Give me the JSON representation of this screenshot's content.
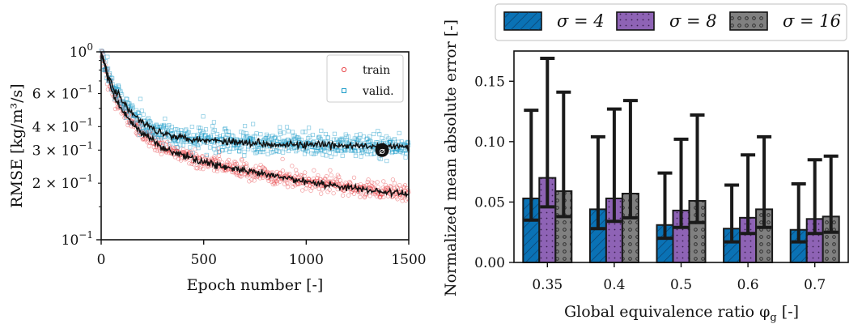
{
  "figure": {
    "left_panel": {
      "xlabel": "Epoch number [-]",
      "ylabel": "RMSE [kg/m³/s]",
      "x_ticks": [
        "0",
        "500",
        "1000",
        "1500"
      ],
      "y_ticks": [
        {
          "mant": "10",
          "exp": "0",
          "value": 1.0
        },
        {
          "mant": "6 × 10",
          "exp": "−1",
          "value": 0.6
        },
        {
          "mant": "4 × 10",
          "exp": "−1",
          "value": 0.4
        },
        {
          "mant": "3 × 10",
          "exp": "−1",
          "value": 0.3
        },
        {
          "mant": "2 × 10",
          "exp": "−1",
          "value": 0.2
        },
        {
          "mant": "10",
          "exp": "−1",
          "value": 0.1
        }
      ],
      "legend": [
        "train",
        "valid."
      ],
      "marker_label": "⌀"
    },
    "right_panel": {
      "xlabel": "Global equivalence ratio φ",
      "xlabel_sub": "g",
      "xlabel_suffix": " [-]",
      "ylabel": "Normalized mean absolute error [-]",
      "y_ticks": [
        "0.00",
        "0.05",
        "0.10",
        "0.15"
      ],
      "legend": [
        {
          "label": "σ = 4"
        },
        {
          "label": "σ = 8"
        },
        {
          "label": "σ = 16"
        }
      ]
    }
  },
  "chart_data": [
    {
      "type": "scatter",
      "xlabel": "Epoch number [-]",
      "ylabel": "RMSE [kg/m³/s]",
      "xlim": [
        0,
        1500
      ],
      "ylim": [
        0.1,
        1.0
      ],
      "yscale": "log",
      "legend_position": "top-right",
      "series": [
        {
          "name": "train",
          "color": "#e8474b",
          "trend": [
            [
              0,
              1.0
            ],
            [
              25,
              0.78
            ],
            [
              50,
              0.62
            ],
            [
              100,
              0.49
            ],
            [
              150,
              0.42
            ],
            [
              200,
              0.37
            ],
            [
              300,
              0.31
            ],
            [
              400,
              0.28
            ],
            [
              500,
              0.26
            ],
            [
              600,
              0.245
            ],
            [
              700,
              0.232
            ],
            [
              800,
              0.222
            ],
            [
              900,
              0.213
            ],
            [
              1000,
              0.205
            ],
            [
              1100,
              0.197
            ],
            [
              1200,
              0.19
            ],
            [
              1300,
              0.184
            ],
            [
              1400,
              0.179
            ],
            [
              1500,
              0.175
            ]
          ]
        },
        {
          "name": "valid.",
          "color": "#1a9bc8",
          "trend": [
            [
              0,
              1.0
            ],
            [
              25,
              0.82
            ],
            [
              50,
              0.68
            ],
            [
              100,
              0.55
            ],
            [
              150,
              0.47
            ],
            [
              200,
              0.42
            ],
            [
              300,
              0.37
            ],
            [
              400,
              0.35
            ],
            [
              500,
              0.34
            ],
            [
              600,
              0.335
            ],
            [
              700,
              0.33
            ],
            [
              800,
              0.325
            ],
            [
              900,
              0.322
            ],
            [
              1000,
              0.32
            ],
            [
              1100,
              0.318
            ],
            [
              1200,
              0.316
            ],
            [
              1300,
              0.314
            ],
            [
              1400,
              0.313
            ],
            [
              1500,
              0.312
            ]
          ]
        }
      ],
      "selected_epoch": 1370,
      "selected_value": 0.3
    },
    {
      "type": "bar",
      "xlabel": "Global equivalence ratio φ_g [-]",
      "ylabel": "Normalized mean absolute error [-]",
      "categories": [
        "0.35",
        "0.4",
        "0.5",
        "0.6",
        "0.7"
      ],
      "ylim": [
        0,
        0.175
      ],
      "legend_position": "top (outside)",
      "series": [
        {
          "name": "σ = 4",
          "color": "#0a72b5",
          "hatch": "diagonal",
          "values": [
            0.053,
            0.044,
            0.031,
            0.028,
            0.027
          ],
          "error_upper": [
            0.126,
            0.104,
            0.074,
            0.064,
            0.065
          ],
          "error_lower": [
            0.035,
            0.028,
            0.02,
            0.017,
            0.017
          ]
        },
        {
          "name": "σ = 8",
          "color": "#8e63b5",
          "hatch": "dots",
          "values": [
            0.07,
            0.053,
            0.043,
            0.037,
            0.036
          ],
          "error_upper": [
            0.169,
            0.127,
            0.102,
            0.089,
            0.085
          ],
          "error_lower": [
            0.046,
            0.034,
            0.029,
            0.024,
            0.024
          ]
        },
        {
          "name": "σ = 16",
          "color": "#808080",
          "hatch": "circles",
          "values": [
            0.059,
            0.057,
            0.051,
            0.044,
            0.038
          ],
          "error_upper": [
            0.141,
            0.134,
            0.122,
            0.104,
            0.088
          ],
          "error_lower": [
            0.038,
            0.037,
            0.033,
            0.029,
            0.025
          ]
        }
      ]
    }
  ]
}
